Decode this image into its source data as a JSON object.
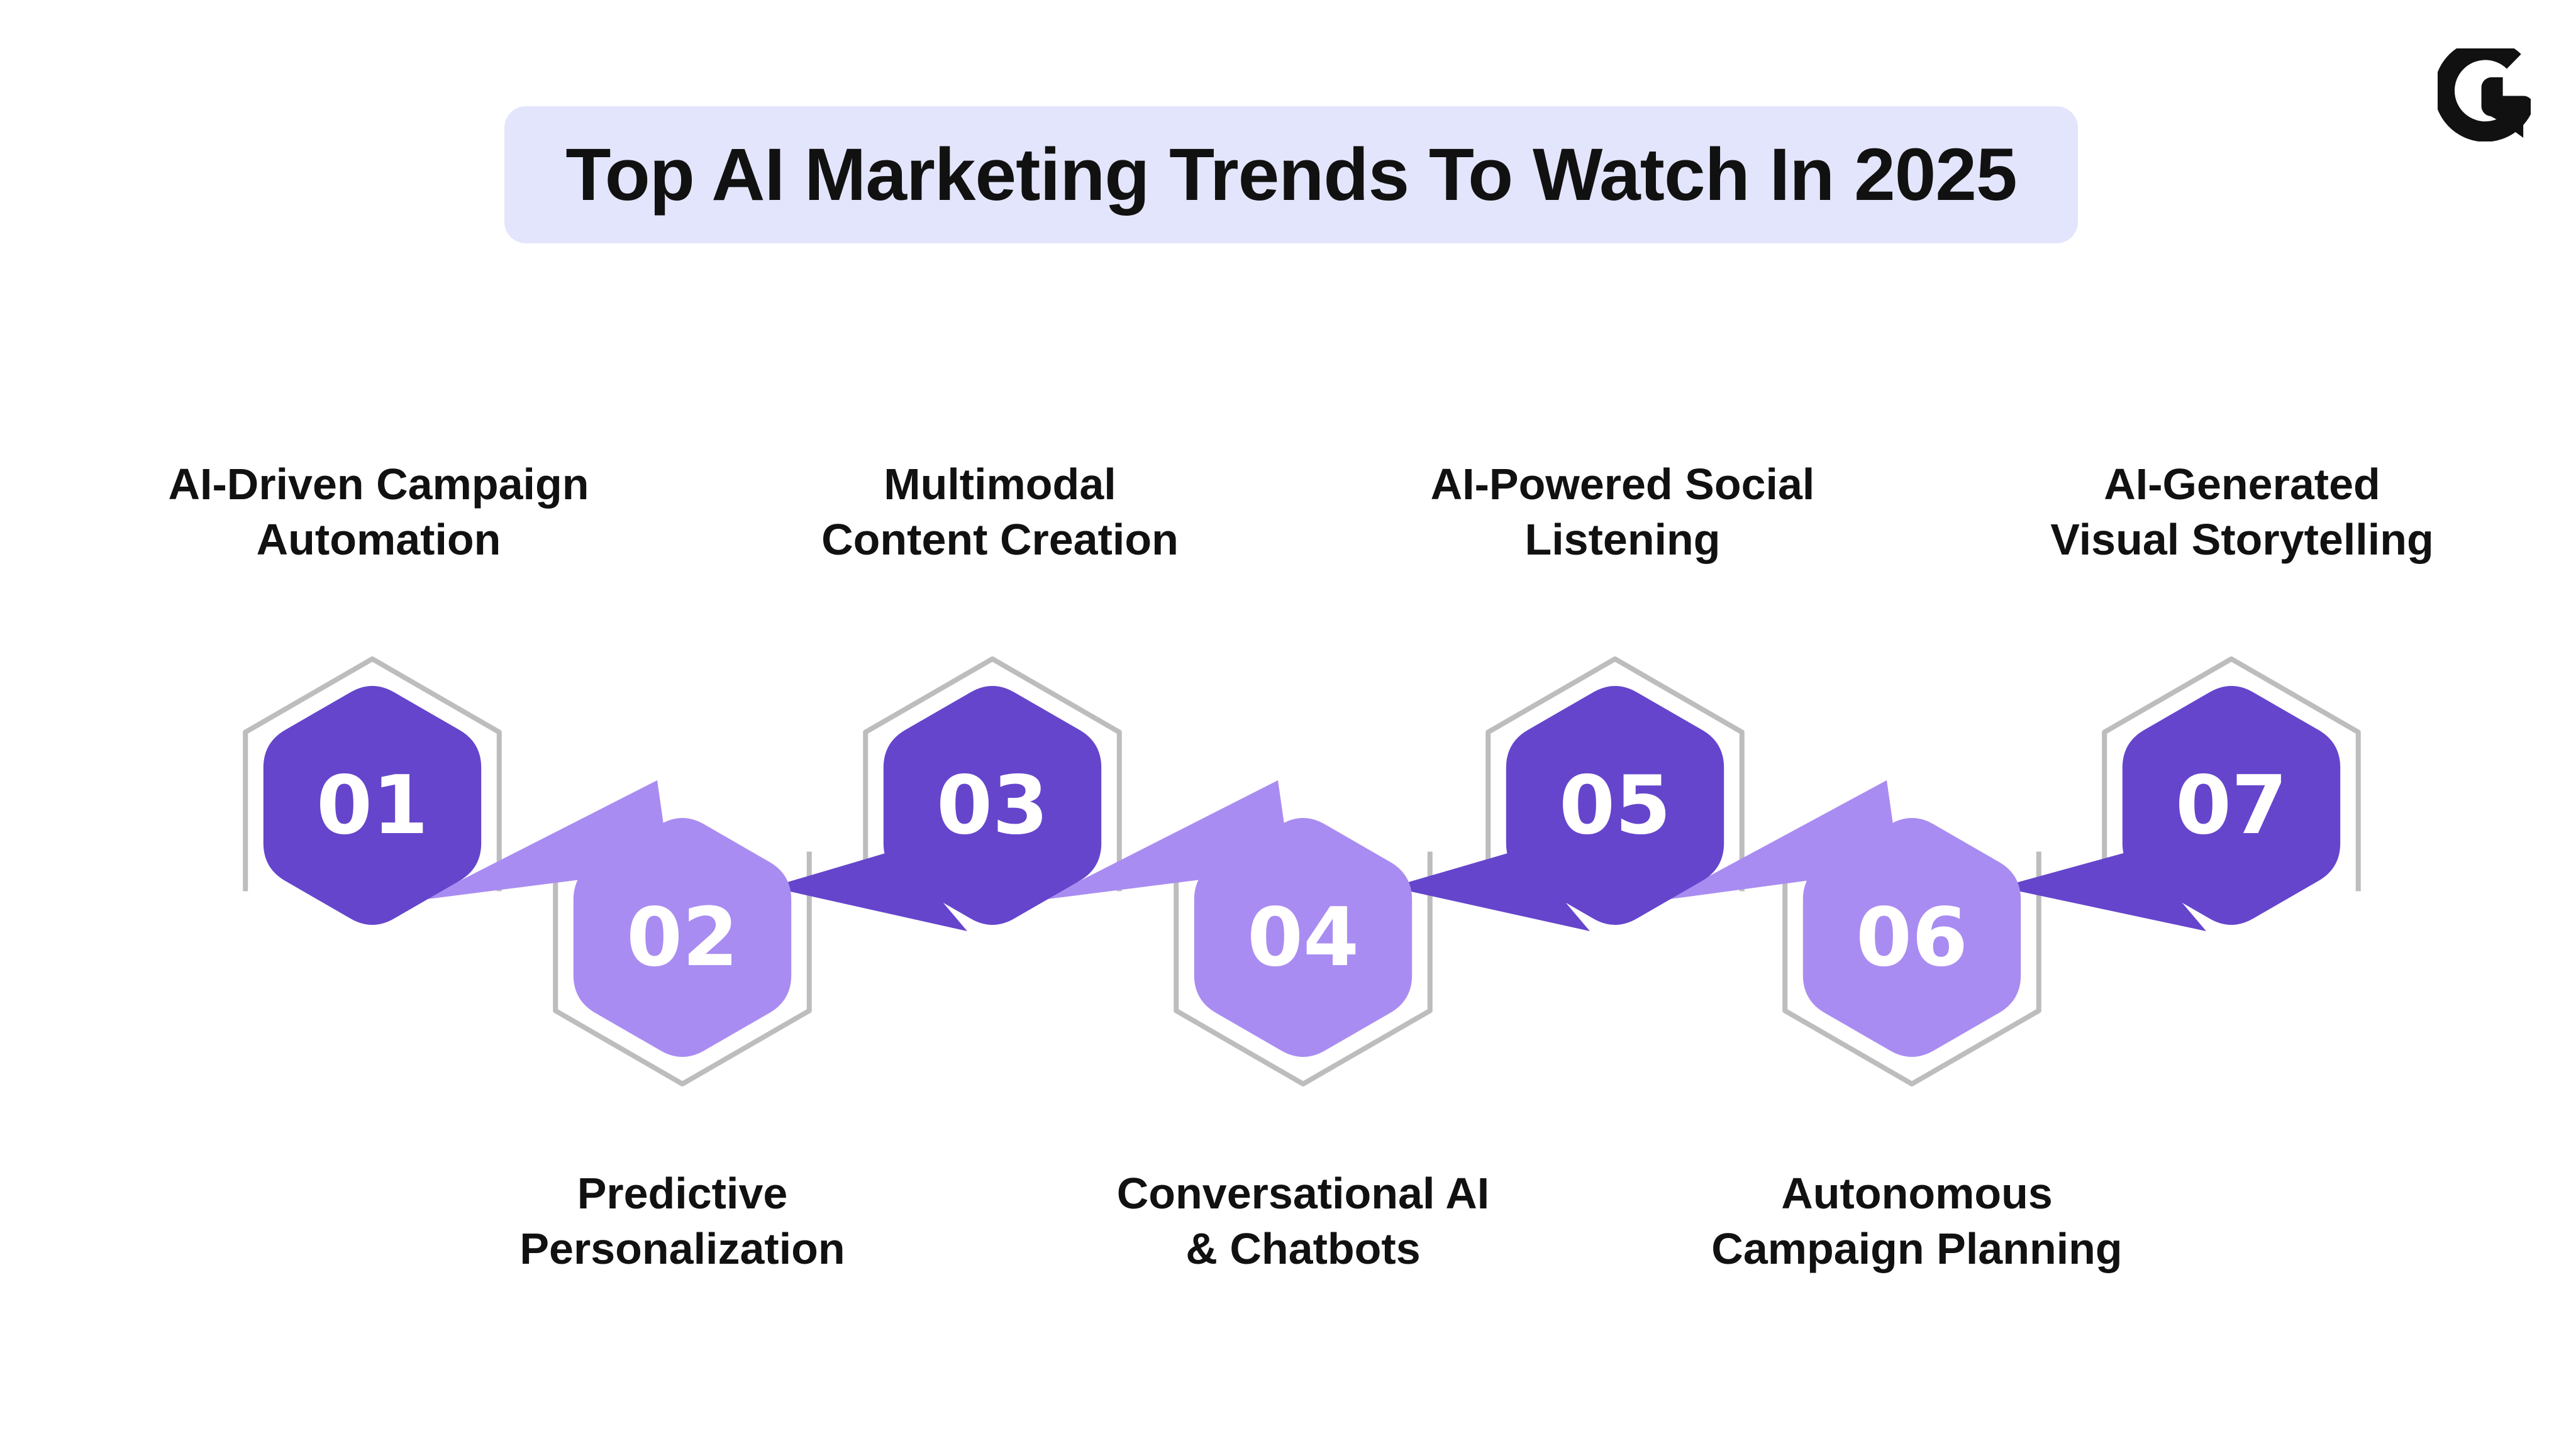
{
  "title": "Top AI Marketing Trends To Watch In 2025",
  "logo": {
    "icon": "g-logo-icon",
    "color": "#111111"
  },
  "colors": {
    "odd_hexagon": "#6545cc",
    "even_hexagon": "#a98cf1",
    "outline": "#bdbdbd",
    "title_background": "#e3e5fc",
    "text": "#111111"
  },
  "steps": [
    {
      "number": "01",
      "label_lines": [
        "AI-Driven Campaign",
        "Automation"
      ]
    },
    {
      "number": "02",
      "label_lines": [
        "Predictive",
        "Personalization"
      ]
    },
    {
      "number": "03",
      "label_lines": [
        "Multimodal",
        "Content Creation"
      ]
    },
    {
      "number": "04",
      "label_lines": [
        "Conversational AI",
        "& Chatbots"
      ]
    },
    {
      "number": "05",
      "label_lines": [
        "AI-Powered Social",
        "Listening"
      ]
    },
    {
      "number": "06",
      "label_lines": [
        "Autonomous",
        "Campaign Planning"
      ]
    },
    {
      "number": "07",
      "label_lines": [
        "AI-Generated",
        "Visual Storytelling"
      ]
    }
  ]
}
